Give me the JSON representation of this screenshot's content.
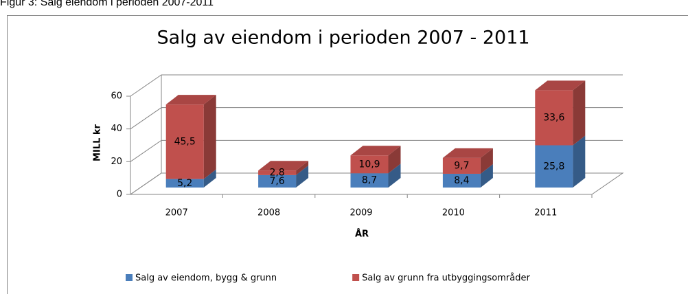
{
  "caption": "Figur 3: Salg eiendom i perioden 2007-2011",
  "chart_data": {
    "type": "bar3d_stacked",
    "title": "Salg av eiendom i perioden 2007 - 2011",
    "x_label": "ÅR",
    "y_label": "MILL kr",
    "categories": [
      "2007",
      "2008",
      "2009",
      "2010",
      "2011"
    ],
    "series": [
      {
        "name": "Salg av eiendom, bygg & grunn",
        "color": "#4a7ebb",
        "values": [
          5.2,
          7.6,
          8.7,
          8.4,
          25.8
        ],
        "value_labels": [
          "5,2",
          "7,6",
          "8,7",
          "8,4",
          "25,8"
        ]
      },
      {
        "name": "Salg av grunn fra utbyggingsområder",
        "color": "#c0504d",
        "values": [
          45.5,
          2.8,
          10.9,
          9.7,
          33.6
        ],
        "value_labels": [
          "45,5",
          "2,8",
          "10,9",
          "9,7",
          "33,6"
        ]
      }
    ],
    "ylim": [
      0,
      60
    ],
    "yticks": [
      0,
      20,
      40,
      60
    ],
    "grid": true,
    "legend": "bottom"
  }
}
